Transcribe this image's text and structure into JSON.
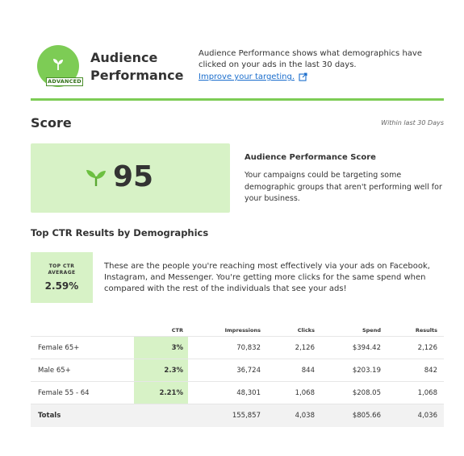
{
  "header": {
    "badge_label": "ADVANCED",
    "title": "Audience Performance",
    "description": "Audience Performance shows what demographics have clicked on your ads in the last 30 days.",
    "link_label": "Improve your targeting.",
    "icons": [
      "sprout-icon",
      "external-link-icon"
    ],
    "accent_color": "#7dcc55"
  },
  "score": {
    "heading": "Score",
    "period": "Within last 30 Days",
    "value": "95",
    "title": "Audience Performance Score",
    "description": "Your campaigns could be targeting some demographic groups that aren't performing well for your business."
  },
  "ctr": {
    "heading": "Top CTR Results by Demographics",
    "box_label": "TOP CTR AVERAGE",
    "box_value": "2.59%",
    "description": "These are the people you're reaching most effectively via your ads on Facebook, Instagram, and Messenger. You're getting more clicks for the same spend when compared with the rest of the individuals that see your ads!"
  },
  "table": {
    "columns": [
      "CTR",
      "Impressions",
      "Clicks",
      "Spend",
      "Results"
    ],
    "rows": [
      {
        "name": "Female 65+",
        "ctr": "3%",
        "impressions": "70,832",
        "clicks": "2,126",
        "spend": "$394.42",
        "results": "2,126"
      },
      {
        "name": "Male 65+",
        "ctr": "2.3%",
        "impressions": "36,724",
        "clicks": "844",
        "spend": "$203.19",
        "results": "842"
      },
      {
        "name": "Female 55 - 64",
        "ctr": "2.21%",
        "impressions": "48,301",
        "clicks": "1,068",
        "spend": "$208.05",
        "results": "1,068"
      }
    ],
    "totals": {
      "name": "Totals",
      "ctr": "",
      "impressions": "155,857",
      "clicks": "4,038",
      "spend": "$805.66",
      "results": "4,036"
    }
  }
}
